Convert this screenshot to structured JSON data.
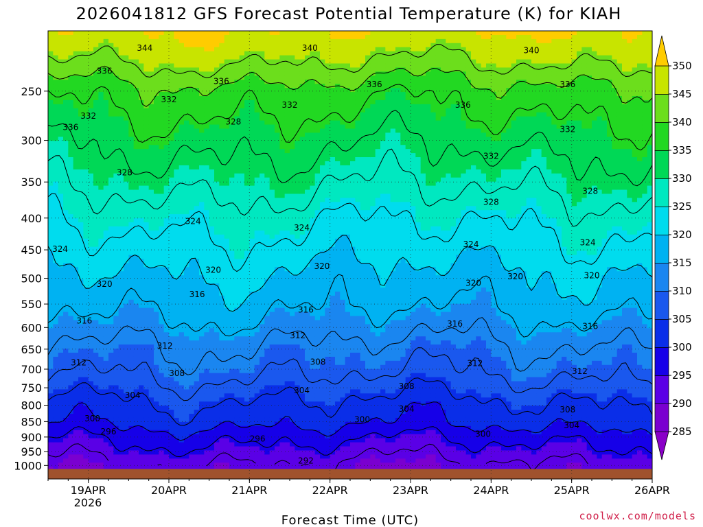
{
  "chart_data": {
    "type": "heatmap",
    "title": "2026041812 GFS Forecast Potential Temperature (K) for KIAH",
    "xlabel": "Forecast Time (UTC)",
    "ylabel": "",
    "credit": "coolwx.com/models",
    "x_ticks": [
      "19APR",
      "20APR",
      "21APR",
      "22APR",
      "23APR",
      "24APR",
      "25APR",
      "26APR"
    ],
    "x_year": "2026",
    "x_range_days": [
      18.5,
      26.0
    ],
    "y_ticks": [
      250,
      300,
      350,
      400,
      450,
      500,
      550,
      600,
      650,
      700,
      750,
      800,
      850,
      900,
      950,
      1000
    ],
    "y_range_hpa": [
      200,
      1000
    ],
    "y_scale": "log",
    "colorbar": {
      "levels": [
        285,
        290,
        295,
        300,
        305,
        310,
        315,
        320,
        325,
        330,
        335,
        340,
        345,
        350
      ],
      "colors": [
        "#7a00d0",
        "#5a00e6",
        "#1600e8",
        "#0a2ee8",
        "#1a58ee",
        "#1a86f0",
        "#00b2f2",
        "#00dcee",
        "#00e8c0",
        "#00d856",
        "#22d822",
        "#6cde1c",
        "#c8e400",
        "#fff200"
      ],
      "below_color": "#8a00c8",
      "above_color": "#ffcc00"
    },
    "ground_color": "#a0522d",
    "profile": [
      {
        "p": 200,
        "theta": 350
      },
      {
        "p": 250,
        "theta": 338
      },
      {
        "p": 300,
        "theta": 333
      },
      {
        "p": 350,
        "theta": 329
      },
      {
        "p": 400,
        "theta": 325
      },
      {
        "p": 450,
        "theta": 322
      },
      {
        "p": 500,
        "theta": 319
      },
      {
        "p": 550,
        "theta": 317
      },
      {
        "p": 600,
        "theta": 314
      },
      {
        "p": 650,
        "theta": 311
      },
      {
        "p": 700,
        "theta": 309
      },
      {
        "p": 750,
        "theta": 306
      },
      {
        "p": 800,
        "theta": 303
      },
      {
        "p": 850,
        "theta": 301
      },
      {
        "p": 900,
        "theta": 297
      },
      {
        "p": 950,
        "theta": 294
      },
      {
        "p": 1000,
        "theta": 291
      }
    ],
    "contour_levels": [
      292,
      296,
      300,
      304,
      308,
      312,
      316,
      320,
      324,
      328,
      332,
      336,
      340,
      344
    ],
    "contour_labels": [
      {
        "text": "344",
        "day": 19.7,
        "p": 213
      },
      {
        "text": "340",
        "day": 21.75,
        "p": 213
      },
      {
        "text": "340",
        "day": 24.5,
        "p": 215
      },
      {
        "text": "336",
        "day": 19.2,
        "p": 232
      },
      {
        "text": "336",
        "day": 20.65,
        "p": 241
      },
      {
        "text": "336",
        "day": 22.55,
        "p": 244
      },
      {
        "text": "336",
        "day": 23.65,
        "p": 263
      },
      {
        "text": "336",
        "day": 24.95,
        "p": 244
      },
      {
        "text": "336",
        "day": 18.78,
        "p": 286
      },
      {
        "text": "332",
        "day": 19.0,
        "p": 274
      },
      {
        "text": "332",
        "day": 20.0,
        "p": 258
      },
      {
        "text": "332",
        "day": 21.5,
        "p": 263
      },
      {
        "text": "332",
        "day": 24.0,
        "p": 318
      },
      {
        "text": "332",
        "day": 24.95,
        "p": 288
      },
      {
        "text": "328",
        "day": 20.8,
        "p": 280
      },
      {
        "text": "328",
        "day": 19.45,
        "p": 338
      },
      {
        "text": "328",
        "day": 24.0,
        "p": 377
      },
      {
        "text": "328",
        "day": 25.23,
        "p": 362
      },
      {
        "text": "324",
        "day": 20.3,
        "p": 405
      },
      {
        "text": "324",
        "day": 21.65,
        "p": 415
      },
      {
        "text": "324",
        "day": 23.75,
        "p": 441
      },
      {
        "text": "324",
        "day": 25.2,
        "p": 438
      },
      {
        "text": "324",
        "day": 18.65,
        "p": 449
      },
      {
        "text": "320",
        "day": 20.55,
        "p": 485
      },
      {
        "text": "320",
        "day": 21.9,
        "p": 478
      },
      {
        "text": "320",
        "day": 23.78,
        "p": 509
      },
      {
        "text": "320",
        "day": 24.3,
        "p": 497
      },
      {
        "text": "320",
        "day": 25.25,
        "p": 495
      },
      {
        "text": "320",
        "day": 19.2,
        "p": 511
      },
      {
        "text": "316",
        "day": 20.35,
        "p": 531
      },
      {
        "text": "316",
        "day": 21.7,
        "p": 562
      },
      {
        "text": "316",
        "day": 23.55,
        "p": 592
      },
      {
        "text": "316",
        "day": 25.23,
        "p": 597
      },
      {
        "text": "316",
        "day": 18.95,
        "p": 585
      },
      {
        "text": "312",
        "day": 19.95,
        "p": 642
      },
      {
        "text": "312",
        "day": 21.6,
        "p": 618
      },
      {
        "text": "312",
        "day": 23.8,
        "p": 685
      },
      {
        "text": "312",
        "day": 25.1,
        "p": 705
      },
      {
        "text": "312",
        "day": 18.88,
        "p": 683
      },
      {
        "text": "308",
        "day": 20.1,
        "p": 711
      },
      {
        "text": "308",
        "day": 21.85,
        "p": 682
      },
      {
        "text": "308",
        "day": 22.95,
        "p": 746
      },
      {
        "text": "308",
        "day": 24.95,
        "p": 813
      },
      {
        "text": "304",
        "day": 19.55,
        "p": 771
      },
      {
        "text": "304",
        "day": 21.65,
        "p": 757
      },
      {
        "text": "304",
        "day": 22.95,
        "p": 811
      },
      {
        "text": "304",
        "day": 25.0,
        "p": 862
      },
      {
        "text": "300",
        "day": 19.05,
        "p": 841
      },
      {
        "text": "300",
        "day": 22.4,
        "p": 844
      },
      {
        "text": "300",
        "day": 23.9,
        "p": 890
      },
      {
        "text": "296",
        "day": 19.25,
        "p": 882
      },
      {
        "text": "296",
        "day": 21.1,
        "p": 906
      },
      {
        "text": "292",
        "day": 21.7,
        "p": 983
      }
    ]
  }
}
